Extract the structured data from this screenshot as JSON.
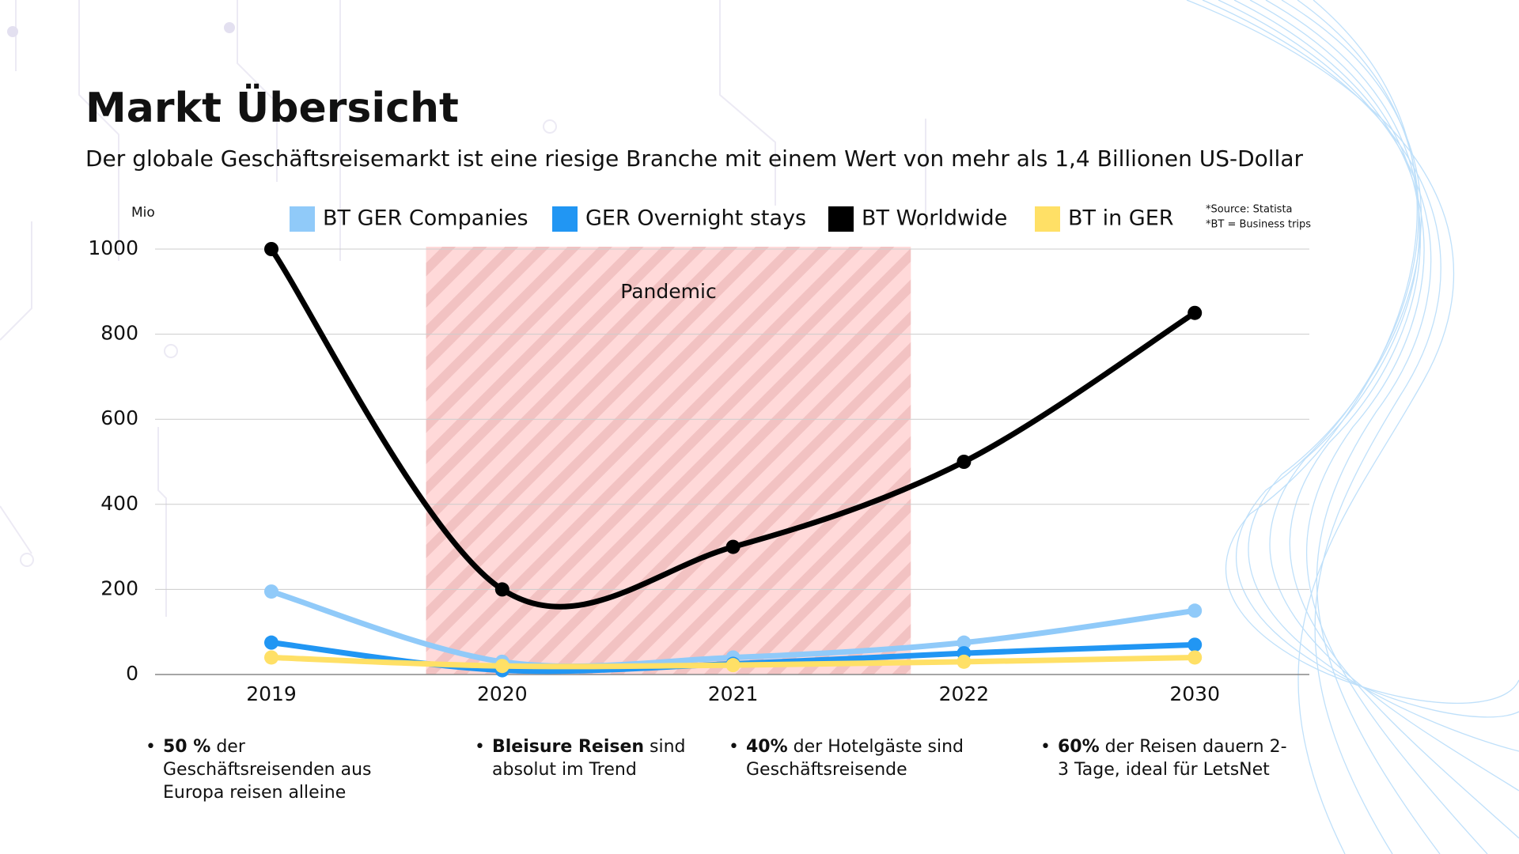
{
  "chart_data": {
    "type": "line",
    "title": "Markt Übersicht",
    "subtitle": "Der globale Geschäftsreisemarkt ist eine riesige Branche mit einem Wert von mehr als 1,4 Billionen US-Dollar",
    "y_label": "Mio",
    "annotation": "Pandemic",
    "notes": [
      "*Source: Statista",
      "*BT = Business trips"
    ],
    "categories": [
      "2019",
      "2020",
      "2021",
      "2022",
      "2030"
    ],
    "series": [
      {
        "name": "BT GER Companies",
        "color": "#90caf9",
        "values": [
          195,
          30,
          40,
          75,
          150
        ]
      },
      {
        "name": "GER Overnight stays",
        "color": "#2196f3",
        "values": [
          75,
          10,
          25,
          50,
          70
        ]
      },
      {
        "name": "BT Worldwide",
        "color": "#000000",
        "values": [
          1000,
          200,
          300,
          500,
          850
        ]
      },
      {
        "name": "BT in GER",
        "color": "#ffe066",
        "values": [
          40,
          20,
          22,
          30,
          40
        ]
      }
    ],
    "ylim": [
      0,
      1000
    ],
    "yticks": [
      0,
      200,
      400,
      600,
      800,
      1000
    ],
    "grid": true
  },
  "bullets": [
    {
      "bold": "50 %",
      "text": " der Geschäftsreisenden aus Europa reisen alleine"
    },
    {
      "bold": "Bleisure  Reisen",
      "text": " sind absolut im Trend"
    },
    {
      "bold": "40%",
      "text": " der Hotelgäste sind Geschäftsreisende"
    },
    {
      "bold": "60%",
      "text": " der Reisen dauern 2-3 Tage, ideal für LetsNet"
    }
  ]
}
